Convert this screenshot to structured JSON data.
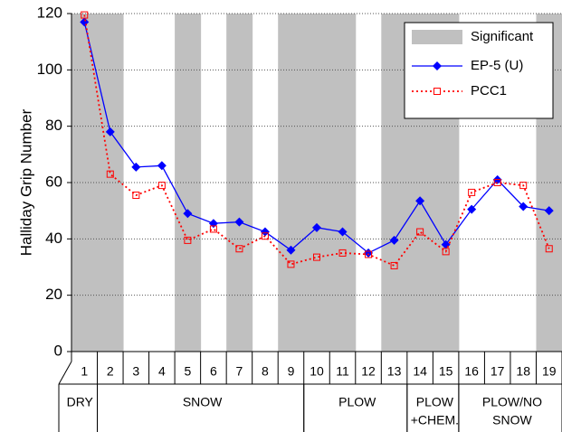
{
  "chart_data": {
    "type": "line",
    "y_label": "Halliday Grip Number",
    "categories": [
      "1",
      "2",
      "3",
      "4",
      "5",
      "6",
      "7",
      "8",
      "9",
      "10",
      "11",
      "12",
      "13",
      "14",
      "15",
      "16",
      "17",
      "18",
      "19"
    ],
    "significance": {
      "name": "Significant",
      "color": "#c0c0c0",
      "shaded": [
        true,
        true,
        false,
        false,
        true,
        false,
        true,
        false,
        true,
        true,
        true,
        false,
        true,
        true,
        true,
        false,
        false,
        false,
        true
      ]
    },
    "series": [
      {
        "name": "EP-5 (U)",
        "color": "#0000ff",
        "values": [
          117,
          78,
          65.5,
          66,
          49,
          45.5,
          46,
          42.5,
          36,
          44,
          42.5,
          35,
          39.5,
          53.5,
          38,
          50.5,
          61,
          51.5,
          50
        ]
      },
      {
        "name": "PCC1",
        "color": "#ff0000",
        "values": [
          119.5,
          63,
          55.5,
          59,
          39.5,
          43.5,
          36.5,
          41,
          31,
          33.5,
          35,
          34.5,
          30.5,
          42.5,
          35.5,
          56.5,
          60,
          59,
          36.5
        ]
      }
    ],
    "groups": [
      [
        "DRY"
      ],
      [
        "SNOW"
      ],
      [
        "PLOW"
      ],
      [
        "PLOW",
        "+CHEM."
      ],
      [
        "PLOW/NO",
        "SNOW"
      ]
    ],
    "ylim": [
      0,
      120
    ],
    "yticks": [
      0,
      20,
      40,
      60,
      80,
      100,
      120
    ],
    "grid": true
  }
}
